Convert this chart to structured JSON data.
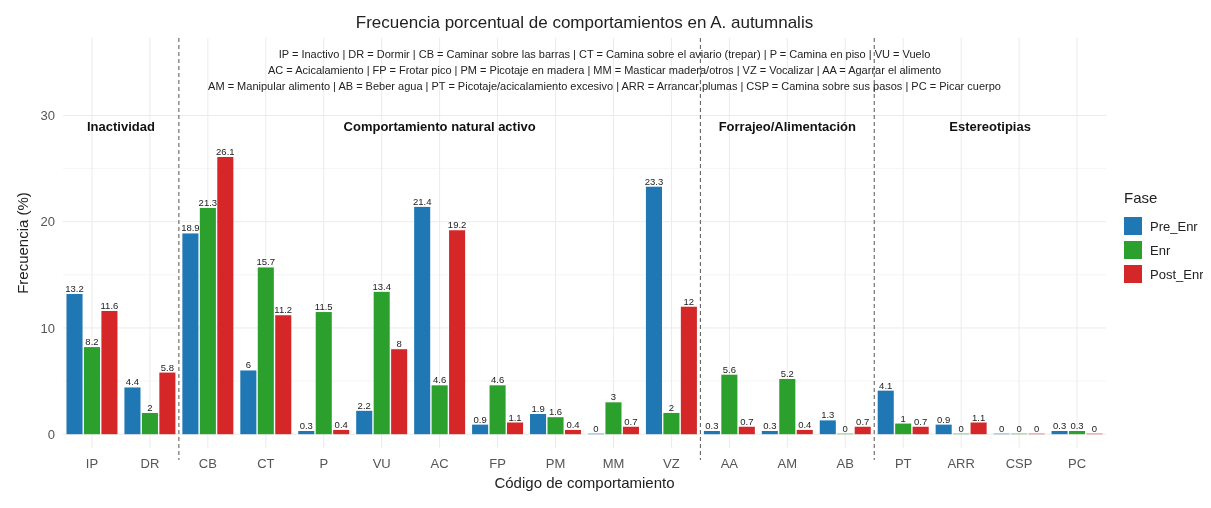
{
  "chart_data": {
    "type": "bar",
    "title": "Frecuencia porcentual de comportamientos en A. autumnalis",
    "xlabel": "Código de comportamiento",
    "ylabel": "Frecuencia (%)",
    "legend_title": "Fase",
    "categories": [
      "IP",
      "DR",
      "CB",
      "CT",
      "P",
      "VU",
      "AC",
      "FP",
      "PM",
      "MM",
      "VZ",
      "AA",
      "AM",
      "AB",
      "PT",
      "ARR",
      "CSP",
      "PC"
    ],
    "series": [
      {
        "name": "Pre_Enr",
        "color": "#1f78b4",
        "values": [
          13.2,
          4.4,
          18.9,
          6,
          0.3,
          2.2,
          21.4,
          0.9,
          1.9,
          0,
          23.3,
          0.3,
          0.3,
          1.3,
          4.1,
          0.9,
          0,
          0.3
        ]
      },
      {
        "name": "Enr",
        "color": "#2ca02c",
        "values": [
          8.2,
          2,
          21.3,
          15.7,
          11.5,
          13.4,
          4.6,
          4.6,
          1.6,
          3,
          2,
          5.6,
          5.2,
          0,
          1,
          0,
          0,
          0.3
        ]
      },
      {
        "name": "Post_Enr",
        "color": "#d62728",
        "values": [
          11.6,
          5.8,
          26.1,
          11.2,
          0.4,
          8,
          19.2,
          1.1,
          0.4,
          0.7,
          12,
          0.7,
          0.4,
          0.7,
          0.7,
          1.1,
          0,
          0
        ]
      }
    ],
    "ylim": [
      -1.3,
      37.3
    ],
    "yticks": [
      0,
      10,
      20,
      30
    ],
    "grid": true,
    "legend": "right",
    "data_labels": true,
    "annotations": [
      "IP = Inactivo   |   DR = Dormir   |   CB = Caminar sobre las barras   |   CT = Camina sobre el aviario (trepar)   |   P = Camina en piso   |   VU = Vuelo",
      "AC = Acicalamiento   |   FP = Frotar pico   |   PM = Picotaje en madera   |   MM = Masticar madera/otros   |   VZ = Vocalizar   |   AA = Agarrar el alimento",
      "AM = Manipular alimento   |   AB = Beber agua   |   PT = Picotaje/acicalamiento excesivo   |   ARR = Arrancar plumas   |   CSP = Camina sobre sus pasos   |   PC = Picar cuerpo",
      "Inactividad",
      "Comportamiento natural activo",
      "Forrajeo/Alimentación",
      "Estereotipias"
    ]
  }
}
